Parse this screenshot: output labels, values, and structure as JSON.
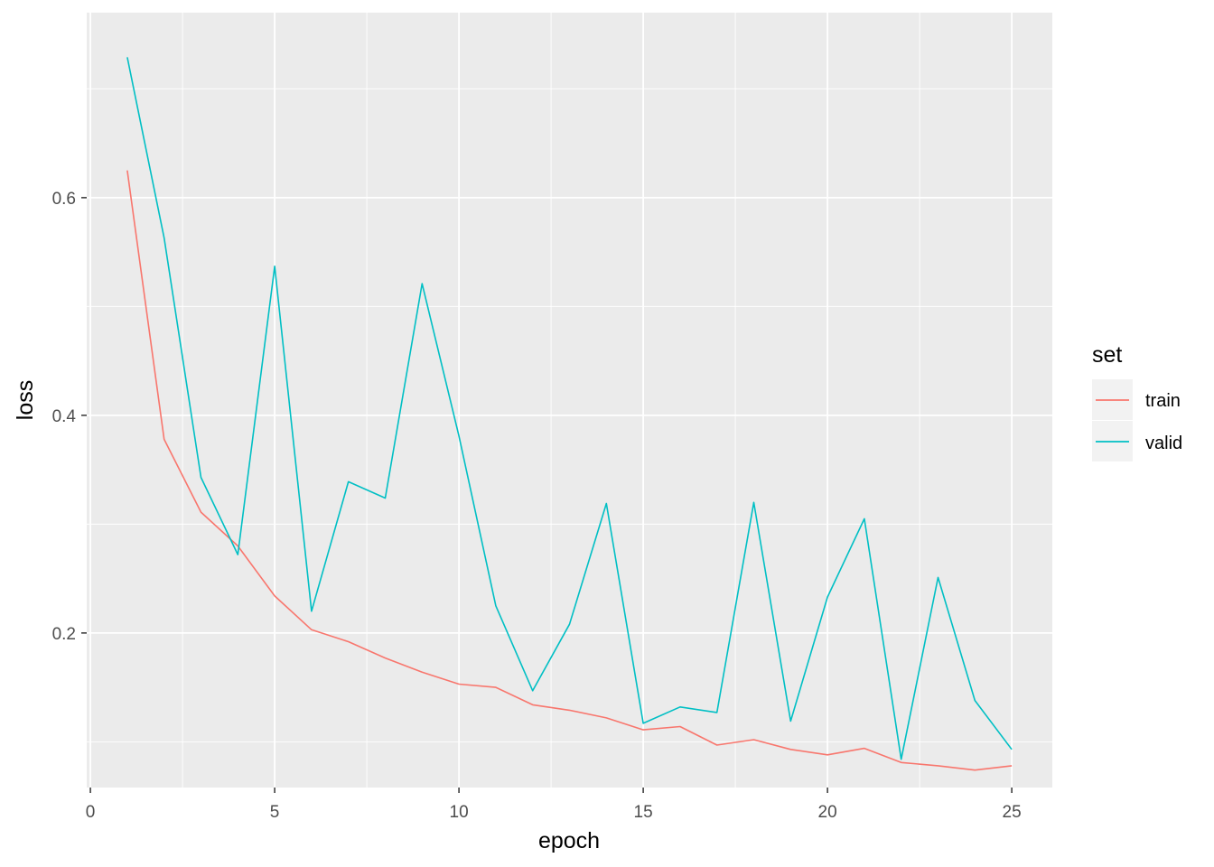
{
  "chart_data": {
    "type": "line",
    "xlabel": "epoch",
    "ylabel": "loss",
    "xlim": [
      -0.1,
      26.1
    ],
    "ylim": [
      0.058,
      0.77
    ],
    "x_ticks": [
      0,
      5,
      10,
      15,
      20,
      25
    ],
    "y_ticks": [
      0.2,
      0.4,
      0.6
    ],
    "y_tick_labels": [
      "0.2",
      "0.4",
      "0.6"
    ],
    "grid": true,
    "legend": {
      "title": "set",
      "position": "right"
    },
    "x": [
      1,
      2,
      3,
      4,
      5,
      6,
      7,
      8,
      9,
      10,
      11,
      12,
      13,
      14,
      15,
      16,
      17,
      18,
      19,
      20,
      21,
      22,
      23,
      24,
      25
    ],
    "series": [
      {
        "name": "train",
        "color": "#F8766D",
        "values": [
          0.625,
          0.378,
          0.311,
          0.28,
          0.234,
          0.203,
          0.192,
          0.177,
          0.164,
          0.153,
          0.15,
          0.134,
          0.129,
          0.122,
          0.111,
          0.114,
          0.097,
          0.102,
          0.093,
          0.088,
          0.094,
          0.081,
          0.078,
          0.074,
          0.078
        ]
      },
      {
        "name": "valid",
        "color": "#00BFC4",
        "values": [
          0.729,
          0.563,
          0.343,
          0.272,
          0.537,
          0.22,
          0.339,
          0.324,
          0.521,
          0.381,
          0.225,
          0.147,
          0.208,
          0.319,
          0.117,
          0.132,
          0.127,
          0.32,
          0.119,
          0.233,
          0.305,
          0.084,
          0.251,
          0.138,
          0.093
        ]
      }
    ]
  }
}
